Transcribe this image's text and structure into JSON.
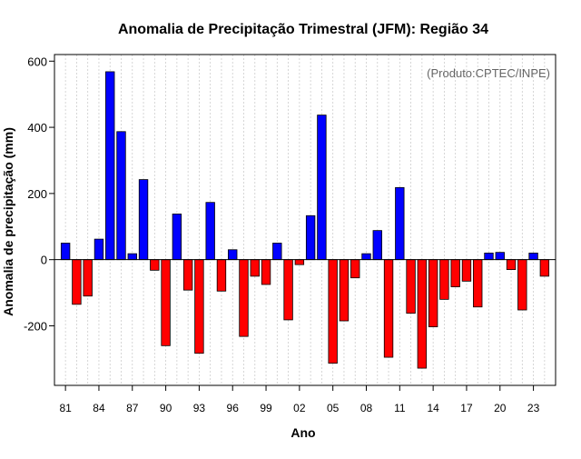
{
  "chart_data": {
    "type": "bar",
    "title": "Anomalia de Precipitação Trimestral (JFM): Região 34",
    "annotation": "(Produto:CPTEC/INPE)",
    "xlabel": "Ano",
    "ylabel": "Anomalia de precipitação (mm)",
    "ylim": [
      -380,
      620
    ],
    "yticks": [
      -200,
      0,
      200,
      400,
      600
    ],
    "x_tick_labels": [
      "81",
      "84",
      "87",
      "90",
      "93",
      "96",
      "99",
      "02",
      "05",
      "08",
      "11",
      "14",
      "17",
      "20",
      "23"
    ],
    "grid": "vertical-dotted",
    "positive_color": "#0000ff",
    "negative_color": "#ff0000",
    "years": [
      1981,
      1982,
      1983,
      1984,
      1985,
      1986,
      1987,
      1988,
      1989,
      1990,
      1991,
      1992,
      1993,
      1994,
      1995,
      1996,
      1997,
      1998,
      1999,
      2000,
      2001,
      2002,
      2003,
      2004,
      2005,
      2006,
      2007,
      2008,
      2009,
      2010,
      2011,
      2012,
      2013,
      2014,
      2015,
      2016,
      2017,
      2018,
      2019,
      2020,
      2021,
      2022,
      2023,
      2024
    ],
    "values": [
      50,
      -135,
      -110,
      62,
      568,
      387,
      18,
      242,
      -32,
      -260,
      138,
      -92,
      -283,
      173,
      -95,
      30,
      -232,
      -50,
      -75,
      50,
      -182,
      -15,
      133,
      437,
      -313,
      -185,
      -55,
      18,
      88,
      -295,
      218,
      -162,
      -328,
      -203,
      -120,
      -82,
      -65,
      -143,
      20,
      22,
      -30,
      -152,
      20,
      -50
    ]
  }
}
